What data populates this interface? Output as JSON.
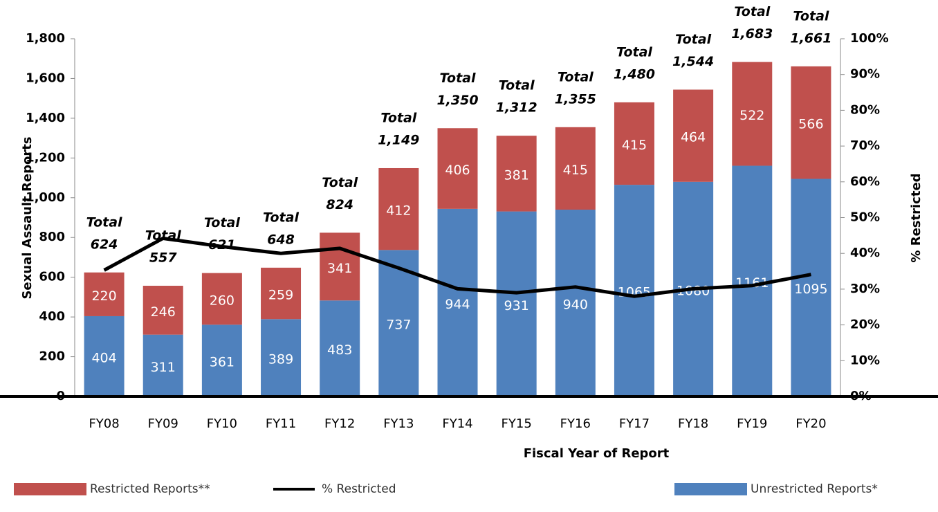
{
  "chart_data": {
    "type": "bar",
    "categories": [
      "FY08",
      "FY09",
      "FY10",
      "FY11",
      "FY12",
      "FY13",
      "FY14",
      "FY15",
      "FY16",
      "FY17",
      "FY18",
      "FY19",
      "FY20"
    ],
    "series": [
      {
        "name": "Unrestricted Reports*",
        "color": "#4f81bd",
        "values": [
          404,
          311,
          361,
          389,
          483,
          737,
          944,
          931,
          940,
          1065,
          1080,
          1161,
          1095
        ]
      },
      {
        "name": "Restricted Reports**",
        "color": "#c0504d",
        "values": [
          220,
          246,
          260,
          259,
          341,
          412,
          406,
          381,
          415,
          415,
          464,
          522,
          566
        ]
      },
      {
        "name": "% Restricted",
        "type": "line",
        "axis": "y2",
        "color": "#000000",
        "values": [
          35.3,
          44.2,
          41.9,
          40.0,
          41.4,
          35.9,
          30.1,
          29.0,
          30.6,
          28.0,
          30.1,
          31.0,
          34.1
        ]
      }
    ],
    "stacked": true,
    "total_prefix": "Total",
    "totals": [
      624,
      557,
      621,
      648,
      824,
      1149,
      1350,
      1312,
      1355,
      1480,
      1544,
      1683,
      1661
    ],
    "total_value_labels": [
      "624",
      "557",
      "621",
      "648",
      "824",
      "1,149",
      "1,350",
      "1,312",
      "1,355",
      "1,480",
      "1,544",
      "1,683",
      "1,661"
    ],
    "ylabel": "Sexual Assault Reports",
    "y2label": "% Restricted",
    "xlabel": "Fiscal Year of Report",
    "ylim": [
      0,
      1800
    ],
    "yticks": [
      0,
      200,
      400,
      600,
      800,
      {
        "value": 1000,
        "label": "1,000"
      },
      {
        "value": 1200,
        "label": "1,200"
      },
      {
        "value": 1400,
        "label": "1,400"
      },
      {
        "value": 1600,
        "label": "1,600"
      },
      {
        "value": 1800,
        "label": "1,800"
      }
    ],
    "y2lim": [
      0,
      100
    ],
    "y2ticks": [
      {
        "value": 0,
        "label": "0%"
      },
      {
        "value": 10,
        "label": "10%"
      },
      {
        "value": 20,
        "label": "20%"
      },
      {
        "value": 30,
        "label": "30%"
      },
      {
        "value": 40,
        "label": "40%"
      },
      {
        "value": 50,
        "label": "50%"
      },
      {
        "value": 60,
        "label": "60%"
      },
      {
        "value": 70,
        "label": "70%"
      },
      {
        "value": 80,
        "label": "80%"
      },
      {
        "value": 90,
        "label": "90%"
      },
      {
        "value": 100,
        "label": "100%"
      }
    ],
    "legend": "bottom"
  }
}
